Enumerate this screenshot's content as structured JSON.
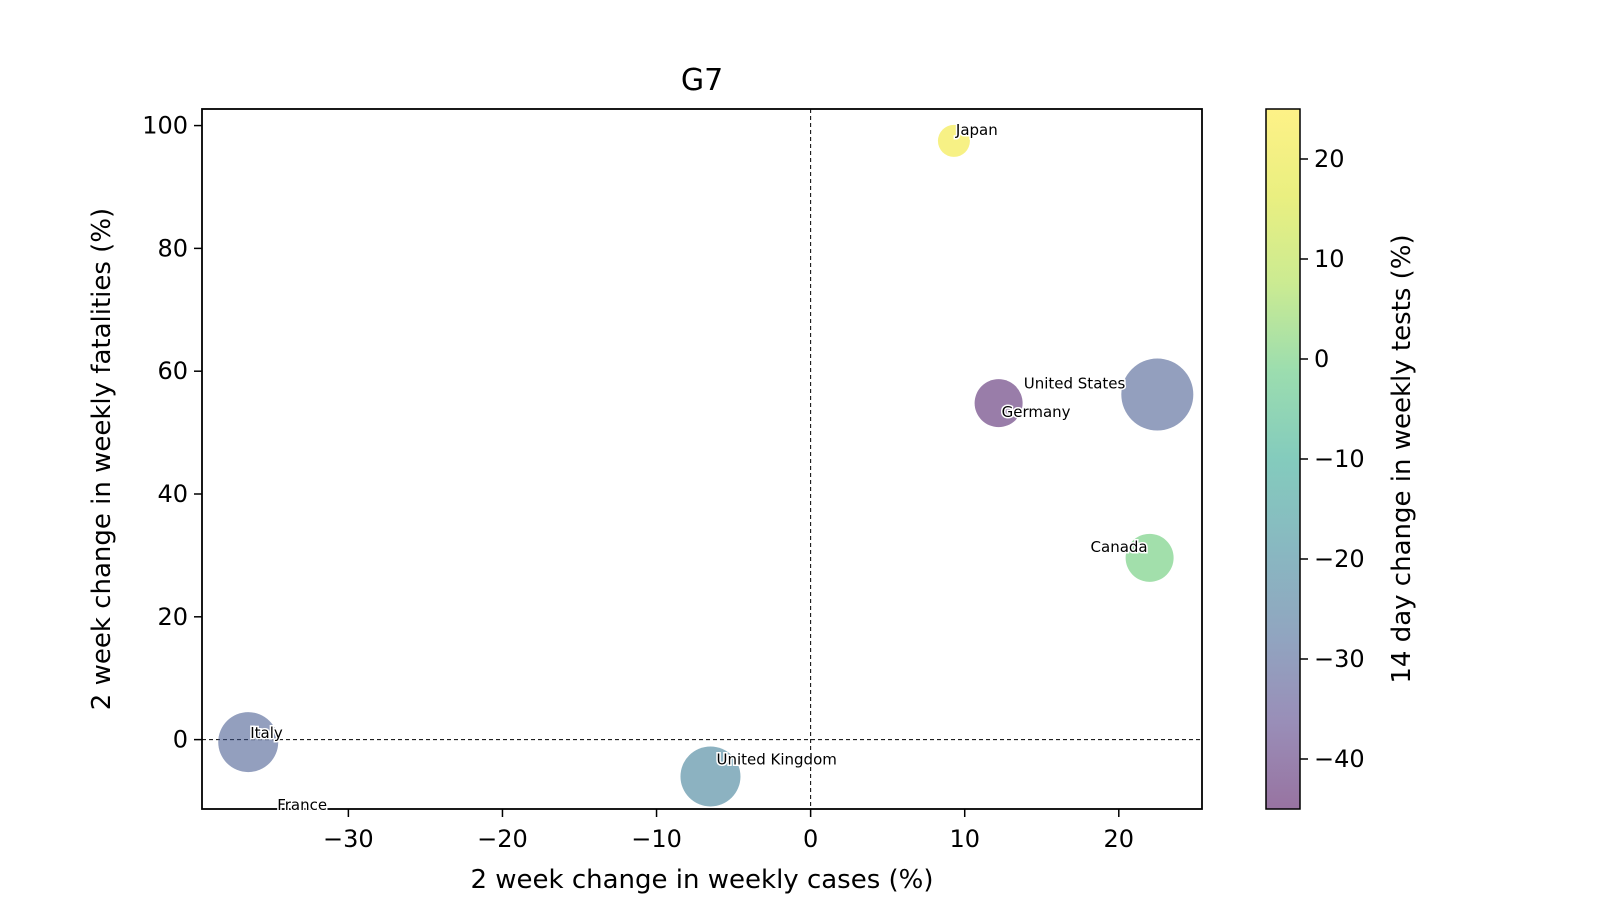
{
  "chart_data": {
    "type": "scatter",
    "title": "G7",
    "xlabel": "2 week change in weekly cases (%)",
    "ylabel": "2 week change in weekly fatalities (%)",
    "colorbar_label": "14 day change in weekly tests (%)",
    "xlim": [
      -39.5,
      25.4
    ],
    "ylim": [
      -11.3,
      102.7
    ],
    "xticks": [
      -30,
      -20,
      -10,
      0,
      10,
      20
    ],
    "yticks": [
      0,
      20,
      40,
      60,
      80,
      100
    ],
    "colorbar_range": [
      -45,
      25
    ],
    "colorbar_ticks": [
      -40,
      -30,
      -20,
      -10,
      0,
      10,
      20
    ],
    "colormap": "viridis",
    "reference_lines": [
      "x=0 dashed",
      "y=0 dashed"
    ],
    "grid": false,
    "points": [
      {
        "label": "Japan",
        "x": 9.3,
        "y": 97.5,
        "color_value": 22,
        "size": "small"
      },
      {
        "label": "United States",
        "x": 22.5,
        "y": 56.2,
        "color_value": -30,
        "size": "xlarge"
      },
      {
        "label": "Germany",
        "x": 12.2,
        "y": 54.8,
        "color_value": -42,
        "size": "medium"
      },
      {
        "label": "Canada",
        "x": 22.0,
        "y": 29.6,
        "color_value": 0,
        "size": "medium"
      },
      {
        "label": "Italy",
        "x": -36.5,
        "y": -0.4,
        "color_value": -30,
        "size": "large"
      },
      {
        "label": "United Kingdom",
        "x": -6.5,
        "y": -6.0,
        "color_value": -22,
        "size": "large"
      },
      {
        "label": "France",
        "x": -33.0,
        "y": -11.5,
        "color_value": null,
        "size": "none"
      }
    ]
  }
}
